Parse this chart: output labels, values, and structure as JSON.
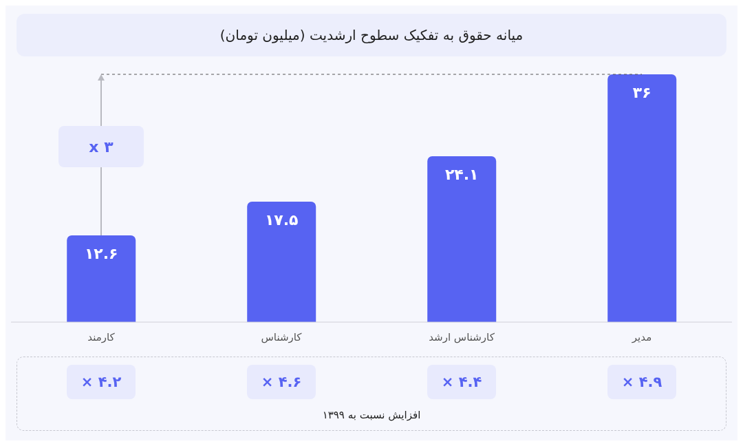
{
  "chart_data": {
    "type": "bar",
    "title": "میانه حقوق به تفکیک سطوح ارشدیت (میلیون تومان)",
    "categories": [
      "کارمند",
      "کارشناس",
      "کارشناس ارشد",
      "مدیر"
    ],
    "values": [
      12.6,
      17.5,
      24.1,
      36
    ],
    "value_labels": [
      "۱۲.۶",
      "۱۷.۵",
      "۲۴.۱",
      "۳۶"
    ],
    "color": "#5763f2",
    "ref_lines": [
      {
        "axis": "y",
        "value": 36,
        "line_style": "dashed",
        "color": "#555555"
      }
    ],
    "annotations": [
      "x ۳",
      "× ۴.۲",
      "× ۴.۶",
      "× ۴.۴",
      "× ۴.۹",
      "افزایش نسبت به ۱۳۹۹"
    ]
  }
}
